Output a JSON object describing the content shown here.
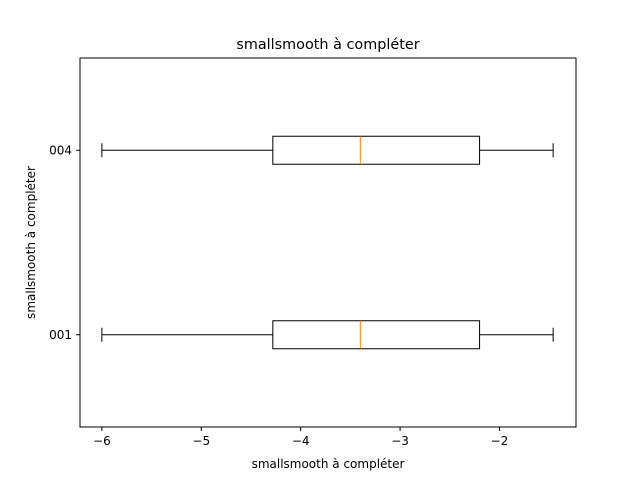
{
  "chart_data": {
    "type": "boxplot",
    "orientation": "horizontal",
    "title": "smallsmooth à compléter",
    "xlabel": "smallsmooth à compléter",
    "ylabel": "smallsmooth à compléter",
    "xlim": [
      -6.22,
      -1.23
    ],
    "xticks": [
      -6,
      -5,
      -4,
      -3,
      -2
    ],
    "xtick_labels": [
      "−6",
      "−5",
      "−4",
      "−3",
      "−2"
    ],
    "categories": [
      "001",
      "004"
    ],
    "boxes": [
      {
        "category": "001",
        "whisker_low": -6.0,
        "q1": -4.28,
        "median": -3.4,
        "q3": -2.2,
        "whisker_high": -1.46
      },
      {
        "category": "004",
        "whisker_low": -6.0,
        "q1": -4.28,
        "median": -3.4,
        "q3": -2.2,
        "whisker_high": -1.46
      }
    ],
    "box_color": "#000000",
    "median_color": "#ff7f0e",
    "grid": false
  }
}
